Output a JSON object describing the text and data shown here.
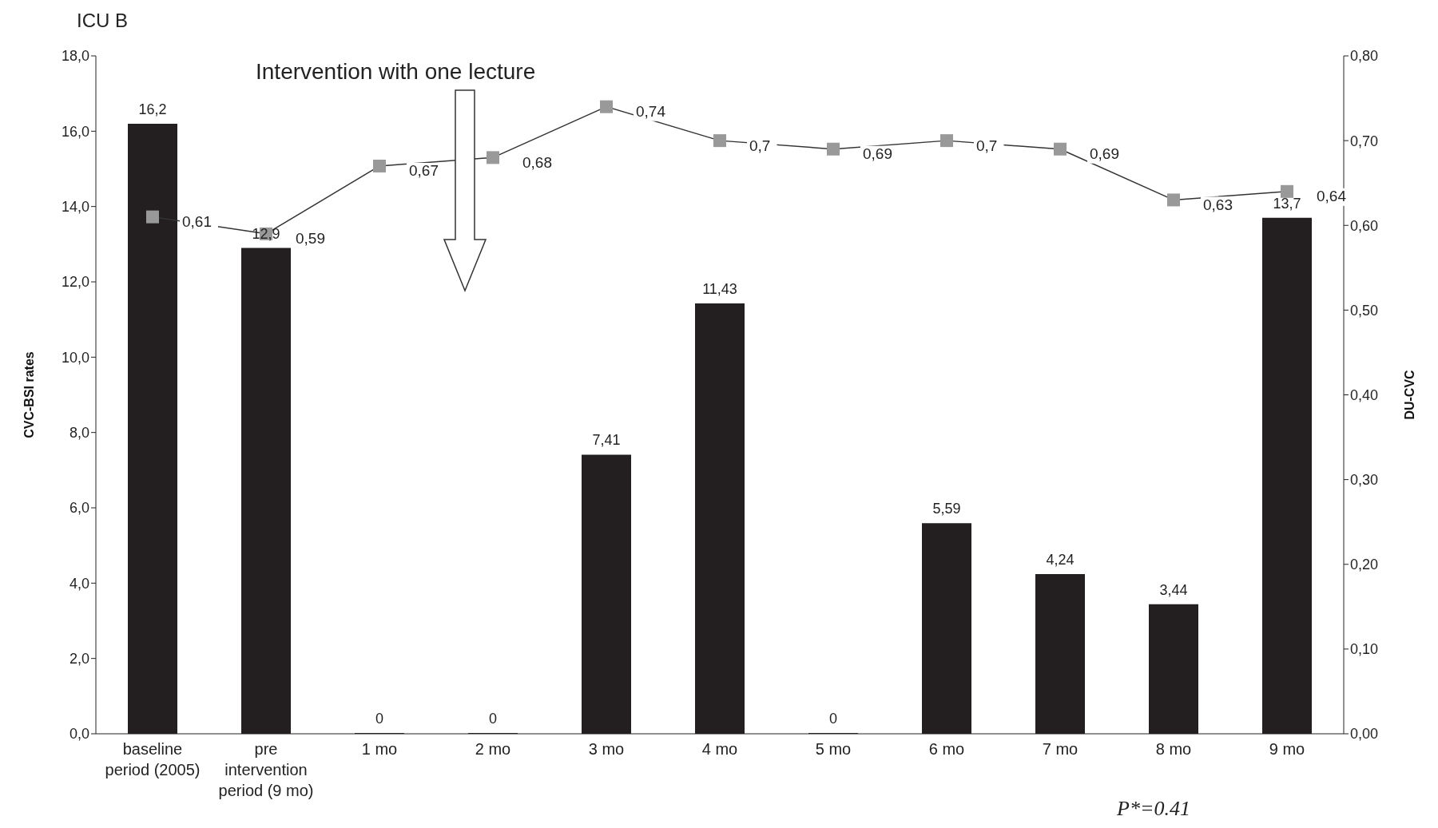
{
  "chart_data": {
    "type": "bar",
    "title": "ICU B",
    "categories": [
      "baseline period (2005)",
      "pre intervention period (9 mo)",
      "1 mo",
      "2 mo",
      "3 mo",
      "4 mo",
      "5 mo",
      "6 mo",
      "7 mo",
      "8 mo",
      "9 mo"
    ],
    "series": [
      {
        "color": "#231f20",
        "values": [
          16.2,
          12.9,
          0,
          0,
          7.41,
          11.43,
          0,
          5.59,
          4.24,
          3.44,
          13.7
        ],
        "value_labels": [
          "16,2",
          "12,9",
          "0",
          "0",
          "7,41",
          "11,43",
          "0",
          "5,59",
          "4,24",
          "3,44",
          "13,7"
        ]
      },
      {
        "type": "line",
        "axis": "y2",
        "color": "#999999",
        "values": [
          0.61,
          0.59,
          0.67,
          0.68,
          0.74,
          0.7,
          0.69,
          0.7,
          0.69,
          0.63,
          0.64
        ],
        "value_labels": [
          "0,61",
          "0,59",
          "0,67",
          "0,68",
          "0,74",
          "0,7",
          "0,69",
          "0,7",
          "0,69",
          "0,63",
          "0,64"
        ]
      }
    ],
    "ylabel": "CVC-BSI rates",
    "y2label": "DU-CVC",
    "ylim": [
      0,
      18
    ],
    "yticks": [
      {
        "value": 0,
        "label": "0,0"
      },
      {
        "value": 2,
        "label": "2,0"
      },
      {
        "value": 4,
        "label": "4,0"
      },
      {
        "value": 6,
        "label": "6,0"
      },
      {
        "value": 8,
        "label": "8,0"
      },
      {
        "value": 10,
        "label": "10,0"
      },
      {
        "value": 12,
        "label": "12,0"
      },
      {
        "value": 14,
        "label": "14,0"
      },
      {
        "value": 16,
        "label": "16,0"
      },
      {
        "value": 18,
        "label": "18,0"
      }
    ],
    "y2lim": [
      0,
      0.8
    ],
    "y2ticks": [
      {
        "value": 0,
        "label": "0,00"
      },
      {
        "value": 0.1,
        "label": "0,10"
      },
      {
        "value": 0.2,
        "label": "0,20"
      },
      {
        "value": 0.3,
        "label": "0,30"
      },
      {
        "value": 0.4,
        "label": "0,40"
      },
      {
        "value": 0.5,
        "label": "0,50"
      },
      {
        "value": 0.6,
        "label": "0,60"
      },
      {
        "value": 0.7,
        "label": "0,70"
      },
      {
        "value": 0.8,
        "label": "0,80"
      }
    ],
    "annotations": [
      "Intervention with one lecture",
      "P*=0.41"
    ],
    "marker": "square",
    "line_style": "solid",
    "grid": false,
    "legend": false
  }
}
